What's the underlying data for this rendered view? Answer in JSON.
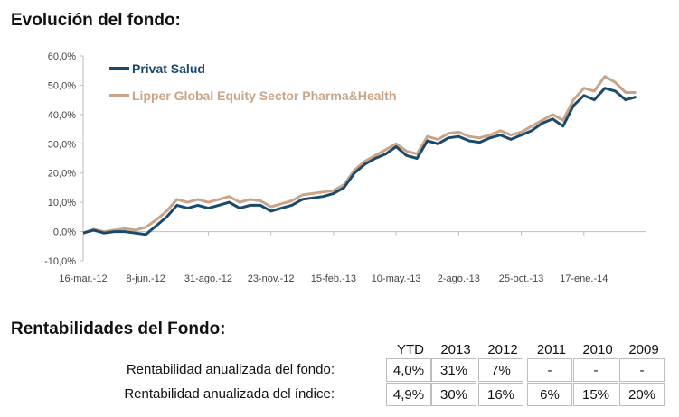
{
  "section1_title": "Evolución del fondo:",
  "section2_title": "Rentabilidades del Fondo:",
  "colors": {
    "fund": "#1a4a6b",
    "index": "#c9a488",
    "axis": "#bdbdbd",
    "text": "#444444"
  },
  "chart_data": {
    "type": "line",
    "ylim": [
      -10,
      60
    ],
    "yticks": [
      "-10,0%",
      "0,0%",
      "10,0%",
      "20,0%",
      "30,0%",
      "40,0%",
      "50,0%",
      "60,0%"
    ],
    "xticks": [
      "16-mar.-12",
      "8-jun.-12",
      "31-ago.-12",
      "23-nov.-12",
      "15-feb.-13",
      "10-may.-13",
      "2-ago.-13",
      "25-oct.-13",
      "17-ene.-14"
    ],
    "grid": false,
    "legend_position": "top-left",
    "series": [
      {
        "name": "Privat Salud",
        "x": [
          "2012-03-16",
          "2012-03-30",
          "2012-04-13",
          "2012-04-27",
          "2012-05-11",
          "2012-05-25",
          "2012-06-08",
          "2012-06-22",
          "2012-07-06",
          "2012-07-20",
          "2012-08-03",
          "2012-08-17",
          "2012-08-31",
          "2012-09-14",
          "2012-09-28",
          "2012-10-12",
          "2012-10-26",
          "2012-11-09",
          "2012-11-23",
          "2012-12-07",
          "2012-12-21",
          "2013-01-04",
          "2013-01-18",
          "2013-02-01",
          "2013-02-15",
          "2013-03-01",
          "2013-03-15",
          "2013-03-29",
          "2013-04-12",
          "2013-04-26",
          "2013-05-10",
          "2013-05-24",
          "2013-06-07",
          "2013-06-21",
          "2013-07-05",
          "2013-07-19",
          "2013-08-02",
          "2013-08-16",
          "2013-08-30",
          "2013-09-13",
          "2013-09-27",
          "2013-10-11",
          "2013-10-25",
          "2013-11-08",
          "2013-11-22",
          "2013-12-06",
          "2013-12-20",
          "2014-01-03",
          "2014-01-17",
          "2014-01-31",
          "2014-02-14",
          "2014-02-28",
          "2014-03-14",
          "2014-03-28"
        ],
        "values": [
          -0.5,
          0.5,
          -0.5,
          0.0,
          0.0,
          -0.5,
          -1.0,
          2.0,
          5.0,
          9.0,
          8.0,
          9.0,
          8.0,
          9.0,
          10.0,
          8.0,
          9.0,
          9.0,
          7.0,
          8.0,
          9.0,
          11.0,
          11.5,
          12.0,
          13.0,
          15.0,
          20.0,
          23.0,
          25.0,
          26.5,
          29.0,
          26.0,
          25.0,
          31.0,
          30.0,
          32.0,
          32.5,
          31.0,
          30.5,
          32.0,
          33.0,
          31.5,
          33.0,
          34.5,
          37.0,
          38.5,
          36.0,
          43.0,
          46.5,
          45.0,
          49.0,
          48.0,
          45.0,
          46.0
        ]
      },
      {
        "name": "Lipper Global Equity Sector Pharma&Health",
        "x": [
          "2012-03-16",
          "2012-03-30",
          "2012-04-13",
          "2012-04-27",
          "2012-05-11",
          "2012-05-25",
          "2012-06-08",
          "2012-06-22",
          "2012-07-06",
          "2012-07-20",
          "2012-08-03",
          "2012-08-17",
          "2012-08-31",
          "2012-09-14",
          "2012-09-28",
          "2012-10-12",
          "2012-10-26",
          "2012-11-09",
          "2012-11-23",
          "2012-12-07",
          "2012-12-21",
          "2013-01-04",
          "2013-01-18",
          "2013-02-01",
          "2013-02-15",
          "2013-03-01",
          "2013-03-15",
          "2013-03-29",
          "2013-04-12",
          "2013-04-26",
          "2013-05-10",
          "2013-05-24",
          "2013-06-07",
          "2013-06-21",
          "2013-07-05",
          "2013-07-19",
          "2013-08-02",
          "2013-08-16",
          "2013-08-30",
          "2013-09-13",
          "2013-09-27",
          "2013-10-11",
          "2013-10-25",
          "2013-11-08",
          "2013-11-22",
          "2013-12-06",
          "2013-12-20",
          "2014-01-03",
          "2014-01-17",
          "2014-01-31",
          "2014-02-14",
          "2014-02-28",
          "2014-03-14",
          "2014-03-28"
        ],
        "values": [
          -0.5,
          0.8,
          0.0,
          0.5,
          1.0,
          0.5,
          1.5,
          4.0,
          7.0,
          11.0,
          10.0,
          11.0,
          10.0,
          11.0,
          12.0,
          10.0,
          11.0,
          10.5,
          8.5,
          9.5,
          10.5,
          12.5,
          13.0,
          13.5,
          14.0,
          16.0,
          21.0,
          24.0,
          26.0,
          28.0,
          30.0,
          27.5,
          26.5,
          32.5,
          31.5,
          33.5,
          34.0,
          32.5,
          32.0,
          33.0,
          34.5,
          33.0,
          34.0,
          36.0,
          38.0,
          40.0,
          38.0,
          45.0,
          49.0,
          48.0,
          53.0,
          51.0,
          47.5,
          47.5
        ]
      }
    ]
  },
  "returns_table": {
    "headers": [
      "YTD",
      "2013",
      "2012",
      "2011",
      "2010",
      "2009"
    ],
    "rows": [
      {
        "label": "Rentabilidad anualizada del fondo:",
        "values": [
          "4,0%",
          "31%",
          "7%",
          "-",
          "-",
          "-"
        ]
      },
      {
        "label": "Rentabilidad anualizada del índice:",
        "values": [
          "4,9%",
          "30%",
          "16%",
          "6%",
          "15%",
          "20%"
        ]
      }
    ]
  }
}
